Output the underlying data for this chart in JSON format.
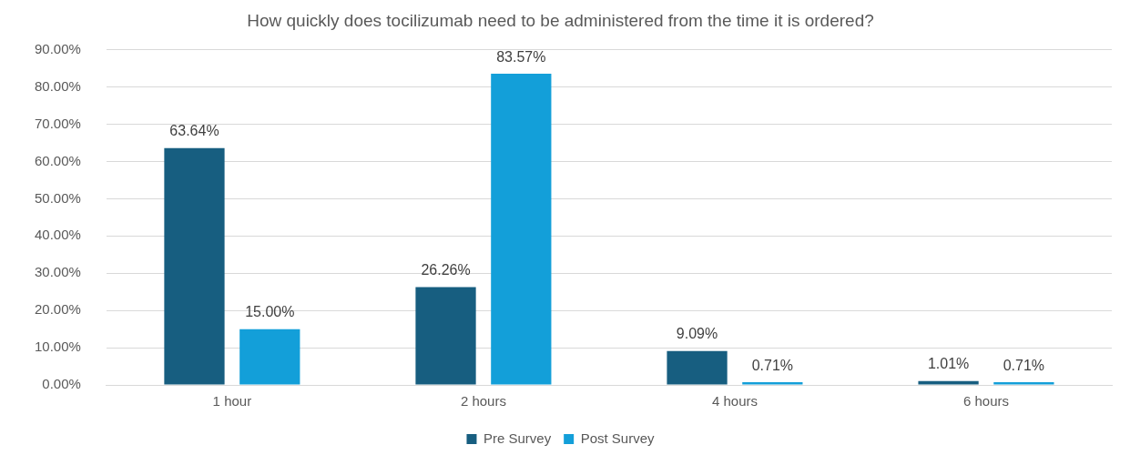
{
  "chart_data": {
    "type": "bar",
    "title": "How quickly does tocilizumab need to be administered from the time it is ordered?",
    "categories": [
      "1 hour",
      "2 hours",
      "4 hours",
      "6 hours"
    ],
    "series": [
      {
        "name": "Pre Survey",
        "color": "#175e80",
        "values": [
          63.64,
          26.26,
          9.09,
          1.01
        ],
        "value_labels": [
          "63.64%",
          "26.26%",
          "9.09%",
          "1.01%"
        ]
      },
      {
        "name": "Post Survey",
        "color": "#139fd9",
        "values": [
          15.0,
          83.57,
          0.71,
          0.71
        ],
        "value_labels": [
          "15.00%",
          "83.57%",
          "0.71%",
          "0.71%"
        ]
      }
    ],
    "ylim": [
      0,
      90
    ],
    "yticks": [
      {
        "value": 0,
        "label": "0.00%"
      },
      {
        "value": 10,
        "label": "10.00%"
      },
      {
        "value": 20,
        "label": "20.00%"
      },
      {
        "value": 30,
        "label": "30.00%"
      },
      {
        "value": 40,
        "label": "40.00%"
      },
      {
        "value": 50,
        "label": "50.00%"
      },
      {
        "value": 60,
        "label": "60.00%"
      },
      {
        "value": 70,
        "label": "70.00%"
      },
      {
        "value": 80,
        "label": "80.00%"
      },
      {
        "value": 90,
        "label": "90.00%"
      }
    ],
    "grid": "y",
    "legend": "bottom"
  }
}
